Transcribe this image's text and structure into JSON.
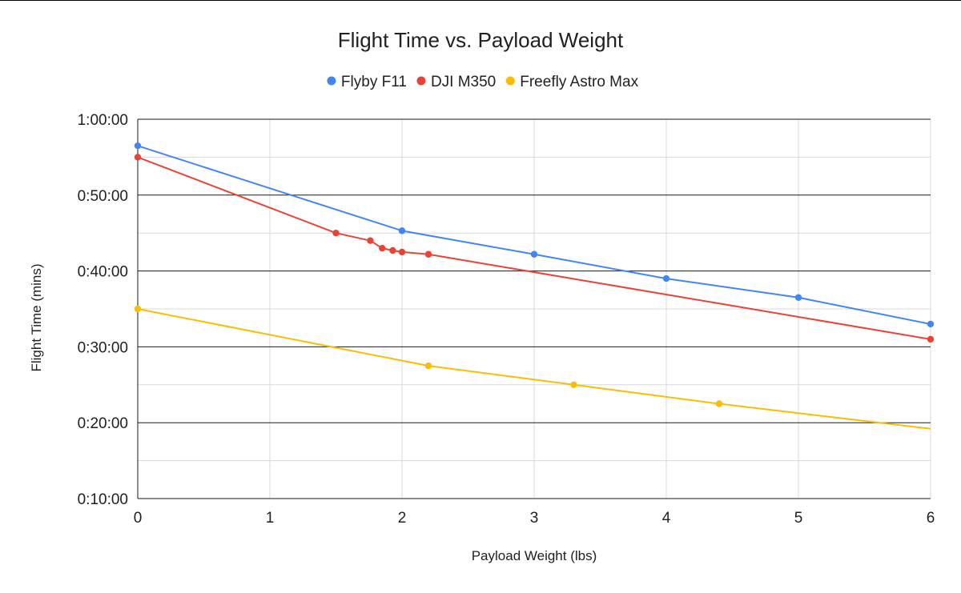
{
  "chart_data": {
    "type": "line",
    "title": "Flight Time vs. Payload Weight",
    "xlabel": "Payload Weight (lbs)",
    "ylabel": "Flight Time (mins)",
    "xlim": [
      0,
      6
    ],
    "ylim": [
      10,
      60
    ],
    "x_ticks": [
      0,
      1,
      2,
      3,
      4,
      5,
      6
    ],
    "x_tick_labels": [
      "0",
      "1",
      "2",
      "3",
      "4",
      "5",
      "6"
    ],
    "y_ticks": [
      10,
      20,
      30,
      40,
      50,
      60
    ],
    "y_tick_labels": [
      "0:10:00",
      "0:20:00",
      "0:30:00",
      "0:40:00",
      "0:50:00",
      "1:00:00"
    ],
    "grid": true,
    "legend_position": "top",
    "series": [
      {
        "name": "Flyby F11",
        "color": "#4285f4",
        "x": [
          0,
          2,
          3,
          4,
          5,
          6
        ],
        "y": [
          56.5,
          45.3,
          42.2,
          39.0,
          36.5,
          33.0
        ]
      },
      {
        "name": "DJI M350",
        "color": "#ea4335",
        "x": [
          0,
          1.5,
          1.76,
          1.85,
          1.93,
          2.0,
          2.2,
          6
        ],
        "y": [
          55.0,
          45.0,
          44.0,
          43.0,
          42.7,
          42.5,
          42.2,
          31.0
        ]
      },
      {
        "name": "Freefly Astro Max",
        "color": "#fbbc04",
        "x": [
          0,
          2.2,
          3.3,
          4.4,
          6
        ],
        "y": [
          35.0,
          27.5,
          25.0,
          22.5,
          19.2
        ],
        "marker_count": 4
      }
    ]
  }
}
